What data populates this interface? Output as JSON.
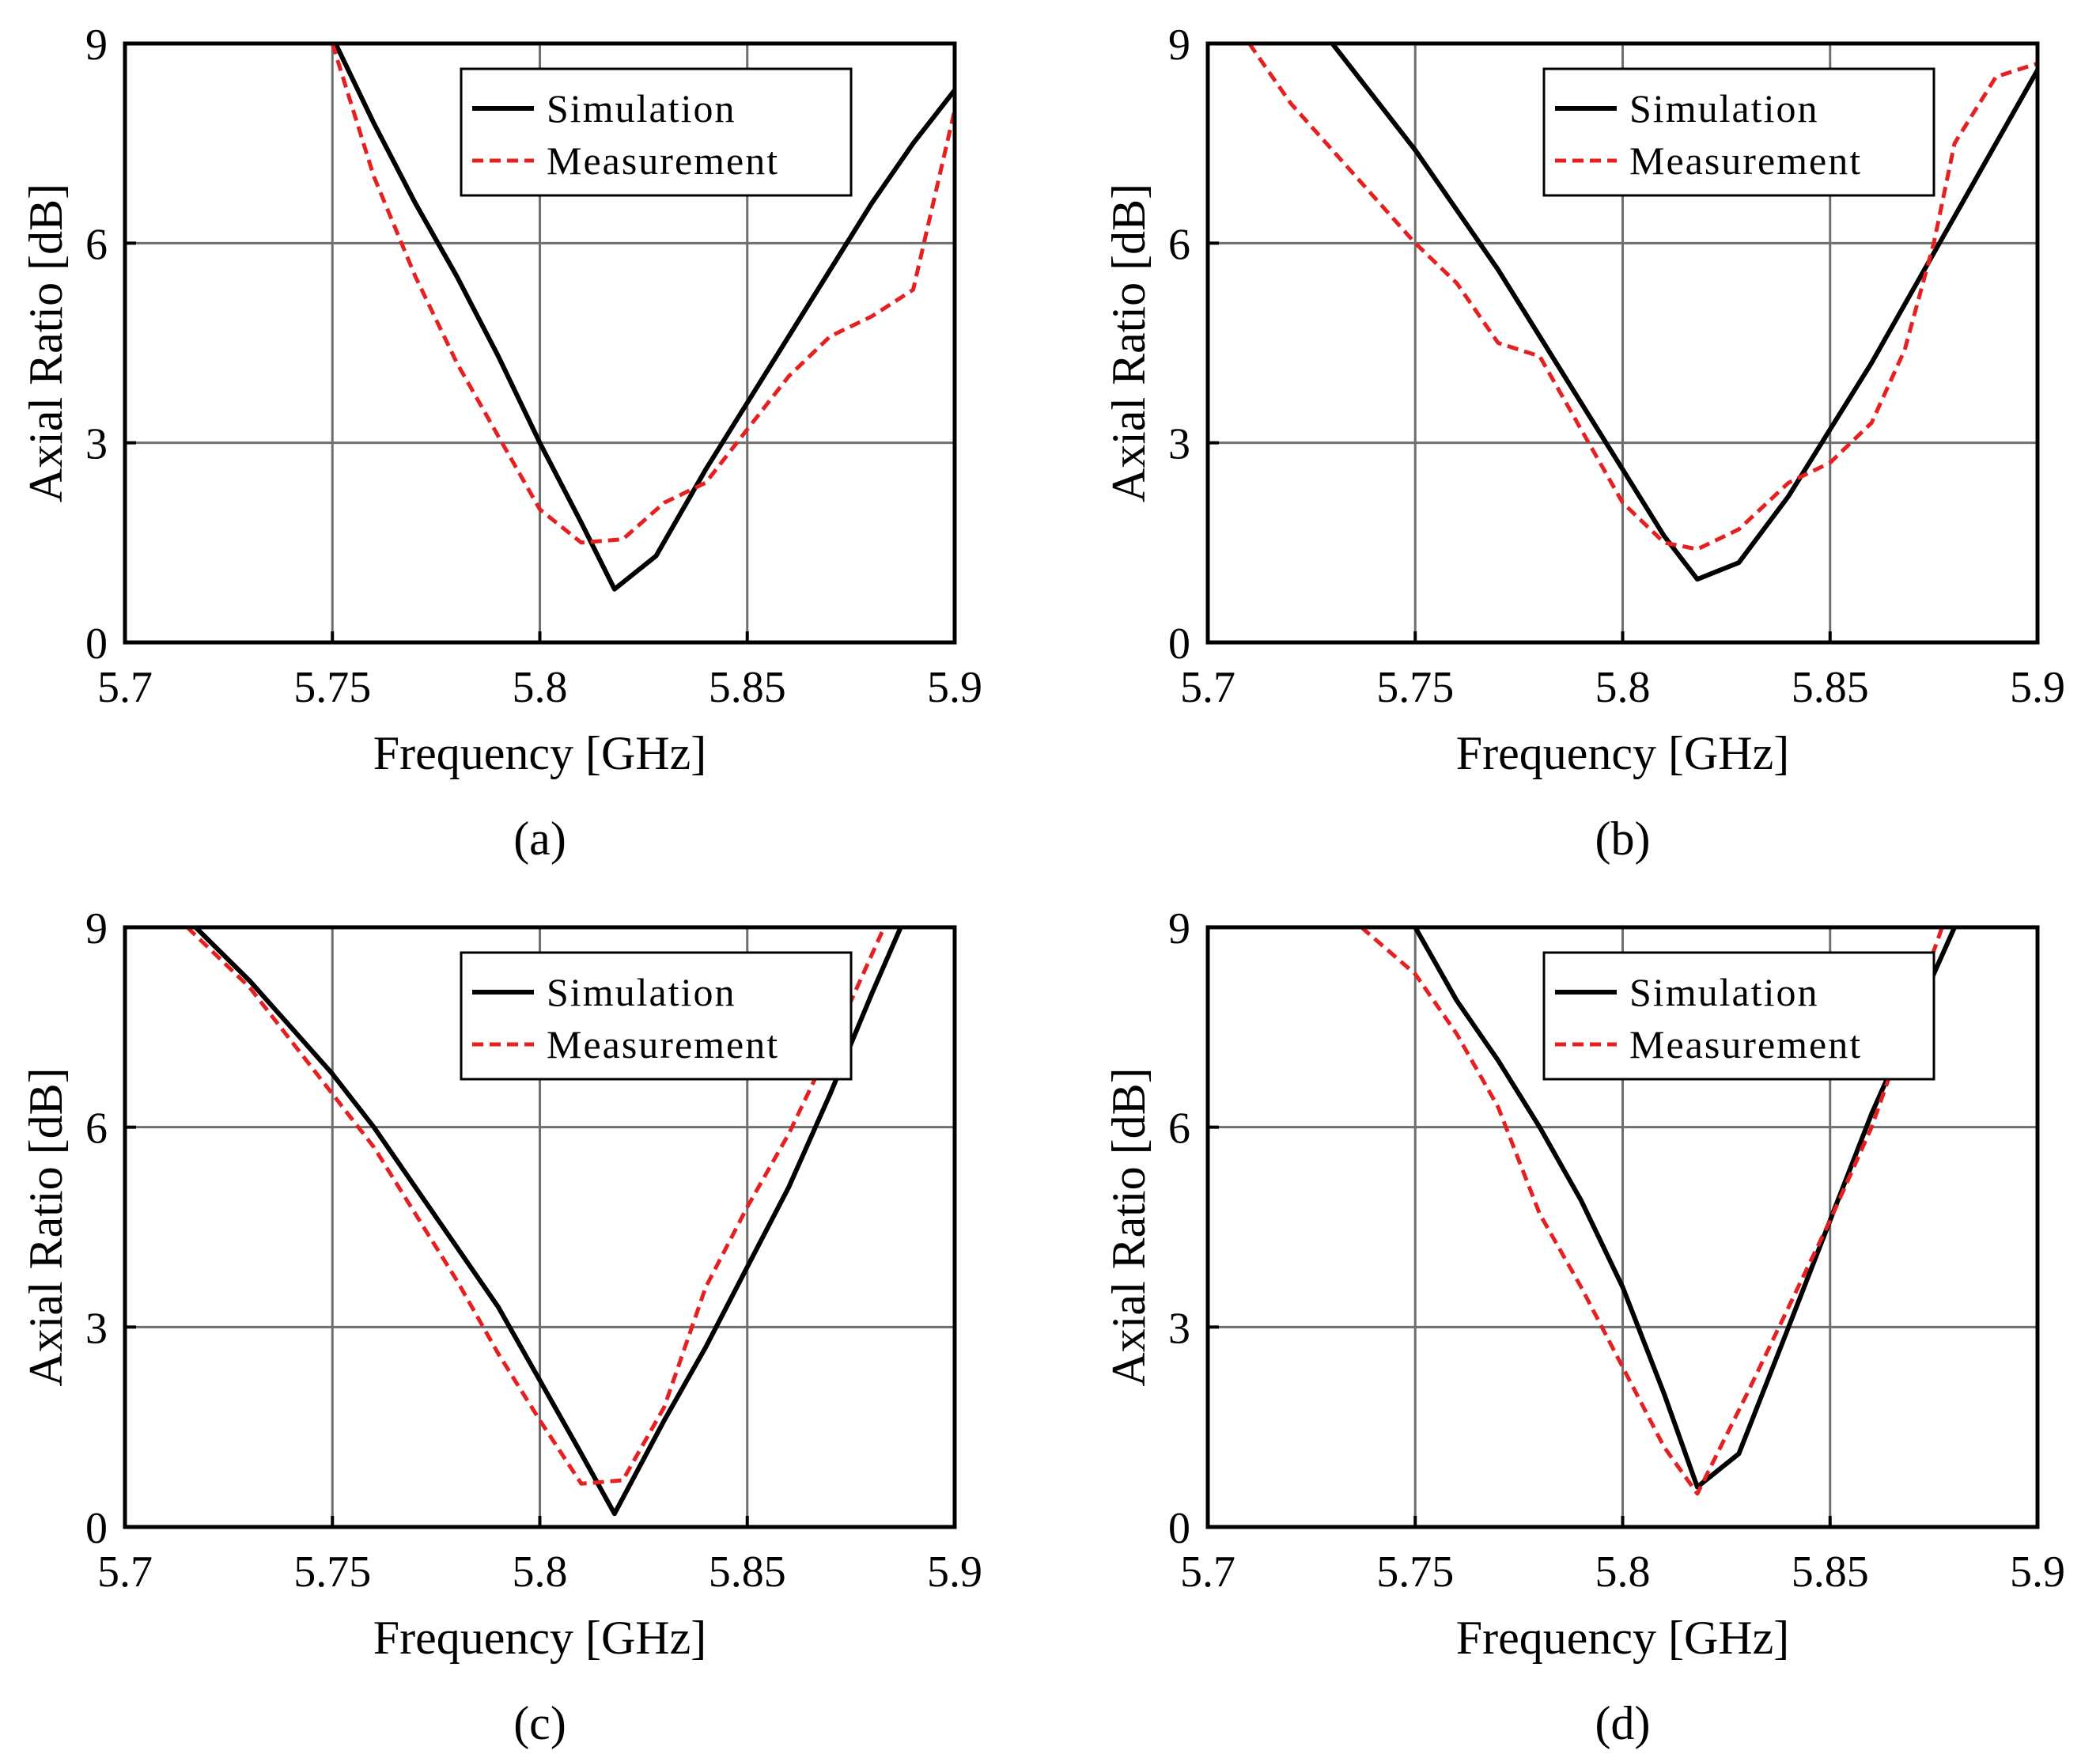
{
  "figure_layout": "2x2 grid",
  "chart_data": [
    {
      "type": "line",
      "caption": "(a)",
      "xlabel": "Frequency [GHz]",
      "ylabel": "Axial Ratio [dB]",
      "xlim": [
        5.7,
        5.9
      ],
      "ylim": [
        0,
        9
      ],
      "xticks": [
        "5.7",
        "5.75",
        "5.8",
        "5.85",
        "5.9"
      ],
      "yticks": [
        "0",
        "3",
        "6",
        "9"
      ],
      "grid": true,
      "legend_position": "top-right",
      "series": [
        {
          "name": "Simulation",
          "color": "#000000",
          "style": "solid",
          "x": [
            5.75,
            5.76,
            5.77,
            5.78,
            5.79,
            5.8,
            5.81,
            5.818,
            5.828,
            5.84,
            5.85,
            5.86,
            5.87,
            5.88,
            5.89,
            5.9
          ],
          "y": [
            9.1,
            7.8,
            6.6,
            5.5,
            4.3,
            3.0,
            1.8,
            0.8,
            1.3,
            2.6,
            3.6,
            4.6,
            5.6,
            6.6,
            7.5,
            8.3
          ]
        },
        {
          "name": "Measurement",
          "color": "#e62020",
          "style": "dashed",
          "x": [
            5.75,
            5.76,
            5.77,
            5.78,
            5.79,
            5.8,
            5.81,
            5.82,
            5.83,
            5.84,
            5.85,
            5.86,
            5.87,
            5.88,
            5.89,
            5.9
          ],
          "y": [
            9.0,
            7.0,
            5.5,
            4.2,
            3.1,
            2.0,
            1.5,
            1.55,
            2.1,
            2.4,
            3.2,
            4.0,
            4.6,
            4.9,
            5.3,
            8.0
          ]
        }
      ]
    },
    {
      "type": "line",
      "caption": "(b)",
      "xlabel": "Frequency [GHz]",
      "ylabel": "Axial Ratio [dB]",
      "xlim": [
        5.7,
        5.9
      ],
      "ylim": [
        0,
        9
      ],
      "xticks": [
        "5.7",
        "5.75",
        "5.8",
        "5.85",
        "5.9"
      ],
      "yticks": [
        "0",
        "3",
        "6",
        "9"
      ],
      "grid": true,
      "legend_position": "top-right",
      "series": [
        {
          "name": "Simulation",
          "color": "#000000",
          "style": "solid",
          "x": [
            5.73,
            5.74,
            5.75,
            5.76,
            5.77,
            5.78,
            5.79,
            5.8,
            5.81,
            5.818,
            5.828,
            5.84,
            5.85,
            5.86,
            5.87,
            5.88,
            5.89,
            5.9
          ],
          "y": [
            9.0,
            8.2,
            7.4,
            6.5,
            5.6,
            4.6,
            3.6,
            2.6,
            1.6,
            0.95,
            1.2,
            2.2,
            3.2,
            4.2,
            5.3,
            6.4,
            7.5,
            8.6
          ]
        },
        {
          "name": "Measurement",
          "color": "#e62020",
          "style": "dashed",
          "x": [
            5.71,
            5.72,
            5.73,
            5.74,
            5.75,
            5.76,
            5.77,
            5.78,
            5.79,
            5.8,
            5.81,
            5.818,
            5.828,
            5.84,
            5.85,
            5.86,
            5.868,
            5.875,
            5.88,
            5.89,
            5.9
          ],
          "y": [
            9.0,
            8.1,
            7.4,
            6.7,
            6.0,
            5.4,
            4.5,
            4.3,
            3.2,
            2.1,
            1.5,
            1.4,
            1.7,
            2.4,
            2.7,
            3.3,
            4.4,
            6.0,
            7.5,
            8.5,
            8.7
          ]
        }
      ]
    },
    {
      "type": "line",
      "caption": "(c)",
      "xlabel": "Frequency [GHz]",
      "ylabel": "Axial Ratio [dB]",
      "xlim": [
        5.7,
        5.9
      ],
      "ylim": [
        0,
        9
      ],
      "xticks": [
        "5.7",
        "5.75",
        "5.8",
        "5.85",
        "5.9"
      ],
      "yticks": [
        "0",
        "3",
        "6",
        "9"
      ],
      "grid": true,
      "legend_position": "top-right",
      "series": [
        {
          "name": "Simulation",
          "color": "#000000",
          "style": "solid",
          "x": [
            5.717,
            5.73,
            5.74,
            5.75,
            5.76,
            5.77,
            5.78,
            5.79,
            5.8,
            5.81,
            5.818,
            5.83,
            5.84,
            5.85,
            5.86,
            5.87,
            5.88,
            5.887
          ],
          "y": [
            9.0,
            8.2,
            7.5,
            6.8,
            6.0,
            5.1,
            4.2,
            3.3,
            2.2,
            1.1,
            0.2,
            1.6,
            2.7,
            3.9,
            5.1,
            6.5,
            8.0,
            9.0
          ]
        },
        {
          "name": "Measurement",
          "color": "#e62020",
          "style": "dashed",
          "x": [
            5.715,
            5.73,
            5.74,
            5.75,
            5.76,
            5.77,
            5.78,
            5.79,
            5.8,
            5.81,
            5.82,
            5.83,
            5.84,
            5.85,
            5.86,
            5.87,
            5.883
          ],
          "y": [
            9.0,
            8.1,
            7.3,
            6.5,
            5.7,
            4.7,
            3.7,
            2.6,
            1.6,
            0.65,
            0.7,
            1.8,
            3.6,
            4.8,
            5.9,
            7.2,
            9.0
          ]
        }
      ]
    },
    {
      "type": "line",
      "caption": "(d)",
      "xlabel": "Frequency [GHz]",
      "ylabel": "Axial Ratio [dB]",
      "xlim": [
        5.7,
        5.9
      ],
      "ylim": [
        0,
        9
      ],
      "xticks": [
        "5.7",
        "5.75",
        "5.8",
        "5.85",
        "5.9"
      ],
      "yticks": [
        "0",
        "3",
        "6",
        "9"
      ],
      "grid": true,
      "legend_position": "top-right",
      "series": [
        {
          "name": "Simulation",
          "color": "#000000",
          "style": "solid",
          "x": [
            5.75,
            5.76,
            5.77,
            5.78,
            5.79,
            5.8,
            5.81,
            5.818,
            5.828,
            5.84,
            5.85,
            5.86,
            5.87,
            5.88
          ],
          "y": [
            9.0,
            7.9,
            7.0,
            6.0,
            4.9,
            3.6,
            2.0,
            0.6,
            1.1,
            3.0,
            4.6,
            6.2,
            7.6,
            9.0
          ]
        },
        {
          "name": "Measurement",
          "color": "#e62020",
          "style": "dashed",
          "x": [
            5.737,
            5.75,
            5.76,
            5.77,
            5.78,
            5.79,
            5.8,
            5.81,
            5.818,
            5.83,
            5.84,
            5.85,
            5.86,
            5.877
          ],
          "y": [
            9.0,
            8.3,
            7.4,
            6.3,
            4.7,
            3.6,
            2.4,
            1.2,
            0.5,
            2.0,
            3.3,
            4.6,
            6.0,
            9.0
          ]
        }
      ]
    }
  ]
}
